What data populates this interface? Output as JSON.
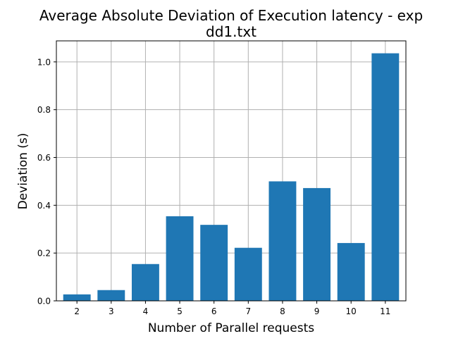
{
  "chart_data": {
    "type": "bar",
    "title_line1": "Average Absolute Deviation of Execution latency - exp",
    "title_line2": "dd1.txt",
    "xlabel": "Number of Parallel requests",
    "ylabel": "Deviation (s)",
    "categories": [
      "2",
      "3",
      "4",
      "5",
      "6",
      "7",
      "8",
      "9",
      "10",
      "11"
    ],
    "values": [
      0.027,
      0.045,
      0.154,
      0.354,
      0.318,
      0.222,
      0.5,
      0.472,
      0.242,
      1.036
    ],
    "ylim": [
      0,
      1.088
    ],
    "yticks": [
      "0.0",
      "0.2",
      "0.4",
      "0.6",
      "0.8",
      "1.0"
    ],
    "grid": true,
    "bar_color": "#1f77b4"
  }
}
